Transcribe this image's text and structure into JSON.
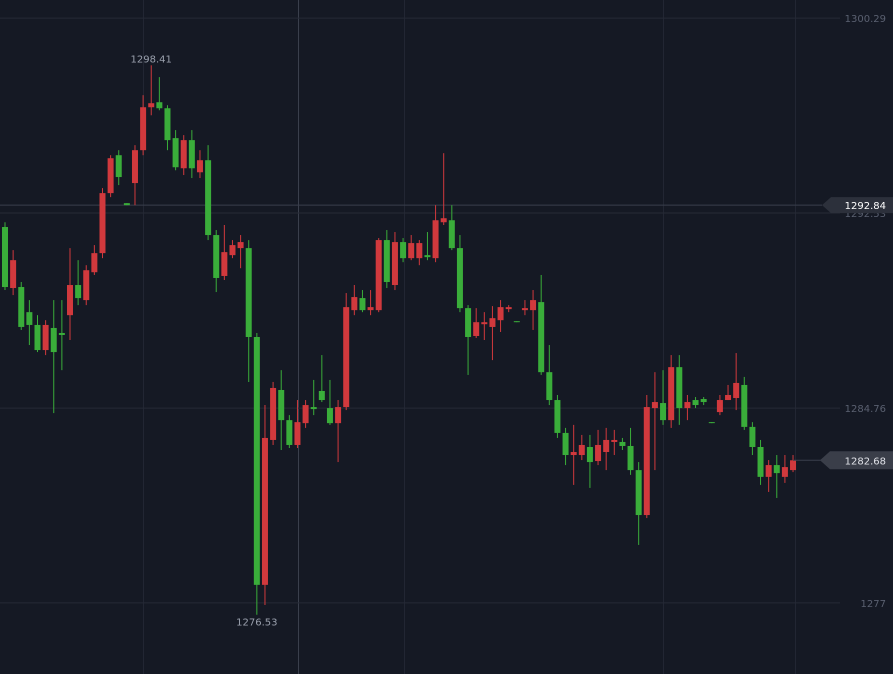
{
  "chart_data": {
    "type": "candlestick",
    "open": [
      1291.97,
      1289.54,
      1289.58,
      1288.58,
      1288.07,
      1287.07,
      1287.95,
      1287.75,
      1288.46,
      1289.66,
      1289.06,
      1290.17,
      1290.93,
      1293.32,
      1294.83,
      1292.92,
      1293.72,
      1295.03,
      1296.74,
      1296.94,
      1296.7,
      1295.51,
      1294.31,
      1295.43,
      1294.15,
      1294.63,
      1291.65,
      1290.02,
      1290.85,
      1291.13,
      1291.13,
      1287.59,
      1277.72,
      1283.49,
      1285.48,
      1284.28,
      1283.29,
      1284.16,
      1284.8,
      1285.44,
      1284.76,
      1284.16,
      1284.8,
      1288.66,
      1289.14,
      1288.66,
      1288.66,
      1291.45,
      1289.66,
      1291.37,
      1290.73,
      1290.73,
      1290.85,
      1290.73,
      1292.16,
      1292.24,
      1291.13,
      1288.74,
      1287.63,
      1288.1,
      1287.99,
      1288.26,
      1288.7,
      1288.22,
      1288.66,
      1288.66,
      1288.98,
      1286.19,
      1285.08,
      1283.77,
      1282.89,
      1282.89,
      1283.21,
      1282.65,
      1283.01,
      1283.41,
      1283.41,
      1283.25,
      1282.29,
      1280.5,
      1284.76,
      1284.96,
      1284.28,
      1286.39,
      1284.76,
      1285.08,
      1285.12,
      1284.2,
      1284.6,
      1285.08,
      1285.16,
      1285.68,
      1284.01,
      1283.21,
      1282.02,
      1282.49,
      1282.02,
      1282.29
    ],
    "high": [
      1292.16,
      1291.05,
      1289.78,
      1289.06,
      1288.46,
      1288.26,
      1289.06,
      1289.06,
      1291.13,
      1290.65,
      1290.45,
      1291.25,
      1293.52,
      1294.83,
      1295.03,
      1292.92,
      1295.23,
      1297.22,
      1298.41,
      1297.94,
      1296.82,
      1295.83,
      1295.63,
      1295.83,
      1295.03,
      1295.23,
      1291.85,
      1292.05,
      1291.45,
      1291.65,
      1291.45,
      1287.75,
      1284.88,
      1285.8,
      1286.27,
      1284.48,
      1285.08,
      1285.08,
      1285.88,
      1286.87,
      1285.88,
      1285.08,
      1289.34,
      1289.66,
      1289.46,
      1289.46,
      1291.53,
      1291.85,
      1291.77,
      1291.53,
      1291.65,
      1291.45,
      1291.77,
      1292.84,
      1294.91,
      1292.84,
      1291.65,
      1288.86,
      1288.74,
      1288.58,
      1288.82,
      1289.06,
      1288.86,
      1288.22,
      1289.06,
      1289.46,
      1290.06,
      1287.27,
      1285.28,
      1283.97,
      1284.09,
      1283.69,
      1283.69,
      1283.89,
      1283.97,
      1283.89,
      1283.57,
      1283.97,
      1282.61,
      1285.28,
      1286.19,
      1286.27,
      1286.87,
      1286.87,
      1285.28,
      1285.2,
      1285.2,
      1284.2,
      1285.28,
      1285.68,
      1286.95,
      1286.0,
      1284.2,
      1283.49,
      1282.69,
      1282.89,
      1282.89,
      1282.89
    ],
    "low": [
      1289.46,
      1289.26,
      1287.87,
      1287.27,
      1286.99,
      1286.87,
      1284.56,
      1286.27,
      1287.47,
      1288.86,
      1288.86,
      1290.06,
      1290.73,
      1293.16,
      1293.64,
      1292.84,
      1292.84,
      1294.83,
      1296.42,
      1296.62,
      1295.03,
      1294.23,
      1294.04,
      1293.92,
      1293.92,
      1291.45,
      1289.38,
      1289.86,
      1290.73,
      1290.33,
      1285.8,
      1276.53,
      1276.92,
      1283.29,
      1283.09,
      1283.17,
      1283.17,
      1283.97,
      1284.48,
      1285.0,
      1284.09,
      1282.61,
      1284.68,
      1288.46,
      1288.58,
      1288.46,
      1288.58,
      1289.54,
      1289.46,
      1290.57,
      1290.65,
      1290.45,
      1290.65,
      1290.57,
      1292.05,
      1291.05,
      1288.58,
      1286.08,
      1287.55,
      1287.47,
      1286.67,
      1287.79,
      1288.58,
      1288.18,
      1288.46,
      1287.87,
      1286.08,
      1284.88,
      1283.57,
      1282.49,
      1281.7,
      1282.69,
      1281.58,
      1282.49,
      1282.29,
      1282.89,
      1283.09,
      1282.1,
      1279.31,
      1280.38,
      1282.29,
      1284.09,
      1283.97,
      1284.09,
      1284.28,
      1284.76,
      1284.88,
      1284.16,
      1284.48,
      1285.08,
      1284.68,
      1283.89,
      1282.89,
      1281.7,
      1281.42,
      1281.18,
      1281.78,
      1282.21
    ],
    "close": [
      1289.58,
      1290.65,
      1287.99,
      1288.07,
      1287.07,
      1288.07,
      1286.99,
      1287.67,
      1289.66,
      1289.14,
      1290.25,
      1290.93,
      1293.32,
      1294.71,
      1293.96,
      1292.84,
      1295.03,
      1296.74,
      1296.9,
      1296.7,
      1295.43,
      1294.35,
      1295.43,
      1294.31,
      1294.63,
      1291.65,
      1289.94,
      1290.97,
      1291.25,
      1291.37,
      1287.59,
      1277.72,
      1283.57,
      1285.56,
      1284.28,
      1283.29,
      1284.2,
      1284.88,
      1284.72,
      1285.08,
      1284.16,
      1284.8,
      1288.78,
      1289.18,
      1288.66,
      1288.78,
      1291.45,
      1289.78,
      1291.37,
      1290.73,
      1291.33,
      1291.33,
      1290.77,
      1292.24,
      1292.32,
      1291.13,
      1288.74,
      1287.59,
      1288.18,
      1288.18,
      1288.34,
      1288.78,
      1288.78,
      1288.18,
      1288.74,
      1289.06,
      1286.19,
      1285.08,
      1283.77,
      1282.89,
      1283.01,
      1283.29,
      1282.61,
      1283.29,
      1283.49,
      1283.49,
      1283.25,
      1282.29,
      1280.5,
      1284.8,
      1285.0,
      1284.28,
      1286.39,
      1284.76,
      1285.0,
      1284.88,
      1285.0,
      1284.16,
      1285.08,
      1285.28,
      1285.76,
      1284.01,
      1283.21,
      1282.02,
      1282.49,
      1282.17,
      1282.41,
      1282.68
    ],
    "up_color": "#d1393d",
    "down_color": "#3aad3a",
    "ylim": [
      1274.17,
      1301.01
    ],
    "yticks": [
      1300.29,
      1292.53,
      1284.76,
      1277
    ],
    "grid": true,
    "crosshair_price": 1292.84
  }
}
